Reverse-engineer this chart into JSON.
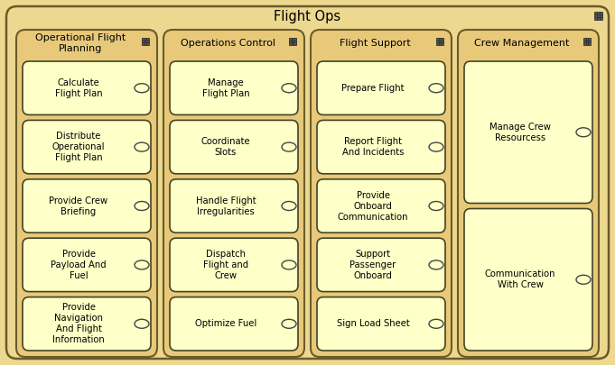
{
  "title": "Flight Ops",
  "outer_bg": "#EDD890",
  "col_bg": "#E8C97A",
  "box_fill": "#FFFFC8",
  "outer_edge": "#6B5B2A",
  "col_edge": "#6B5B2A",
  "box_edge": "#444422",
  "text_color": "#000000",
  "columns": [
    {
      "title": "Operational Flight\nPlanning",
      "items": [
        "Calculate\nFlight Plan",
        "Distribute\nOperational\nFlight Plan",
        "Provide Crew\nBriefing",
        "Provide\nPayload And\nFuel",
        "Provide\nNavigation\nAnd Flight\nInformation"
      ]
    },
    {
      "title": "Operations Control",
      "items": [
        "Manage\nFlight Plan",
        "Coordinate\nSlots",
        "Handle Flight\nIrregularities",
        "Dispatch\nFlight and\nCrew",
        "Optimize Fuel"
      ]
    },
    {
      "title": "Flight Support",
      "items": [
        "Prepare Flight",
        "Report Flight\nAnd Incidents",
        "Provide\nOnboard\nCommunication",
        "Support\nPassenger\nOnboard",
        "Sign Load Sheet"
      ]
    },
    {
      "title": "Crew Management",
      "items": [
        "Manage Crew\nResourcess",
        "Communication\nWith Crew"
      ]
    }
  ],
  "figw": 6.81,
  "figh": 4.05,
  "dpi": 100
}
